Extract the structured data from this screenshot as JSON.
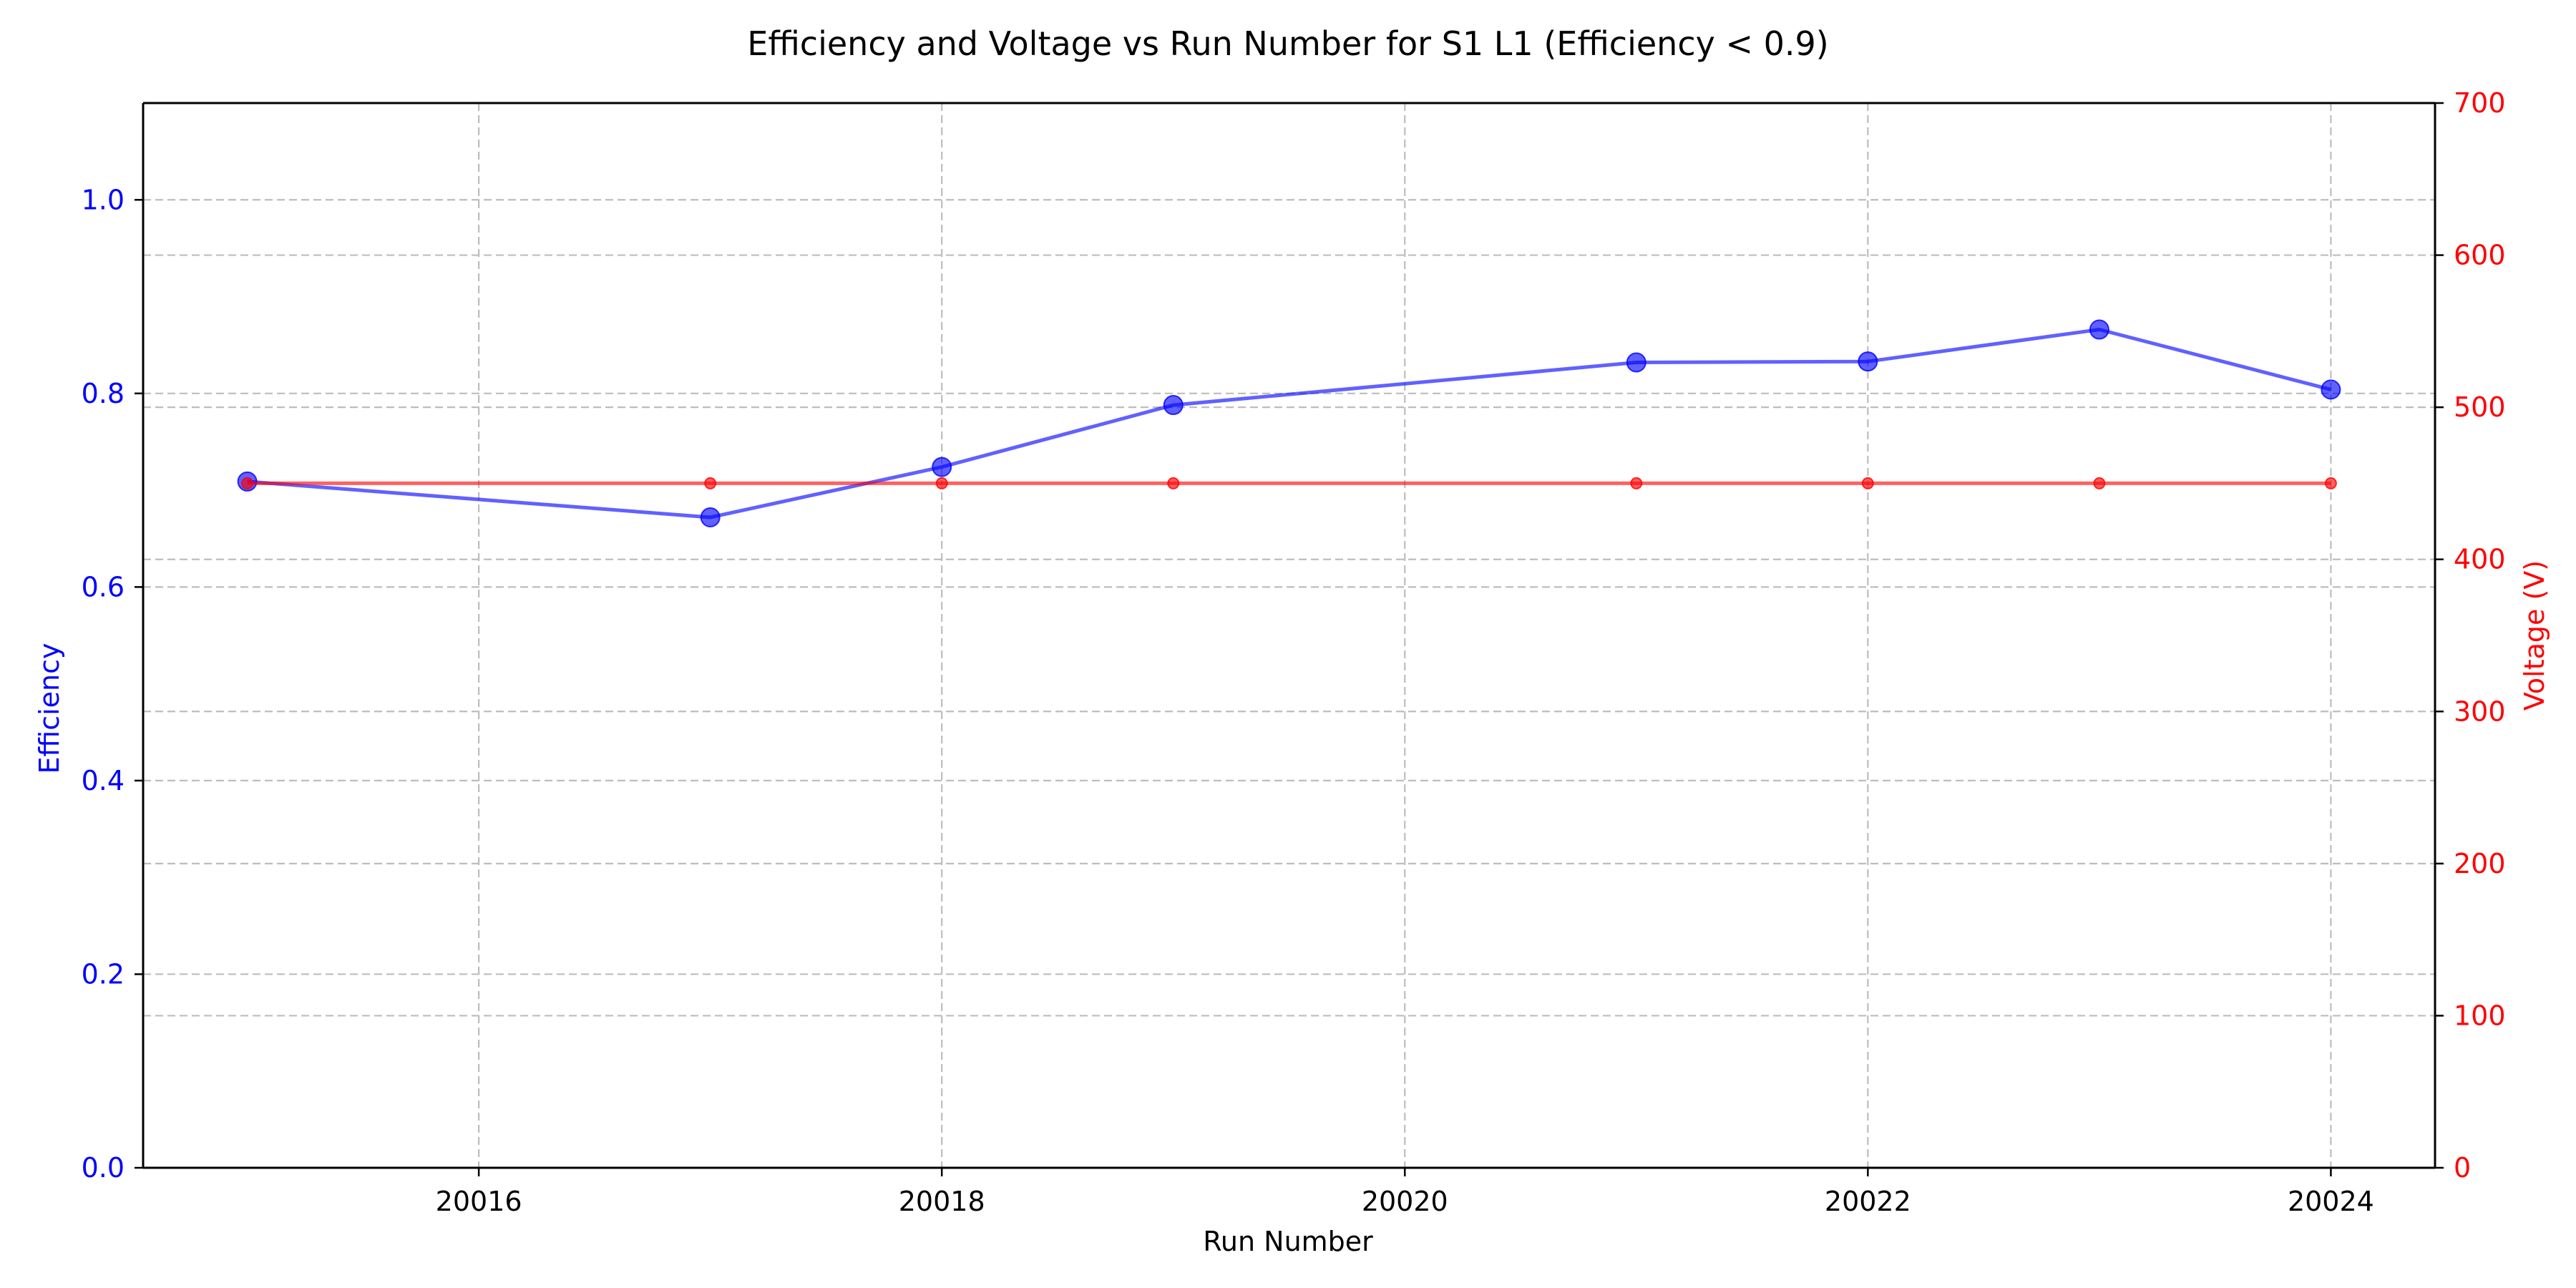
{
  "chart_data": {
    "type": "line",
    "title": "Efficiency and Voltage vs Run Number for S1 L1 (Efficiency < 0.9)",
    "xlabel": "Run Number",
    "xlim": [
      20014.55,
      20024.45
    ],
    "x_ticks": [
      20016,
      20018,
      20020,
      20022,
      20024
    ],
    "grid": true,
    "y_left": {
      "label": "Efficiency",
      "color": "#0000ff",
      "lim": [
        0.0,
        1.1
      ],
      "ticks": [
        0.0,
        0.2,
        0.4,
        0.6,
        0.8,
        1.0
      ],
      "tick_labels": [
        "0.0",
        "0.2",
        "0.4",
        "0.6",
        "0.8",
        "1.0"
      ]
    },
    "y_right": {
      "label": "Voltage (V)",
      "color": "#ff0000",
      "lim": [
        0,
        700
      ],
      "ticks": [
        0,
        100,
        200,
        300,
        400,
        500,
        600,
        700
      ],
      "tick_labels": [
        "0",
        "100",
        "200",
        "300",
        "400",
        "500",
        "600",
        "700"
      ]
    },
    "series": [
      {
        "axis": "left",
        "color": "#0000ff",
        "marker": "circle-large",
        "x": [
          20015,
          20017,
          20018,
          20019,
          20021,
          20022,
          20023,
          20024
        ],
        "y": [
          0.709,
          0.672,
          0.724,
          0.788,
          0.832,
          0.833,
          0.866,
          0.804
        ]
      },
      {
        "axis": "right",
        "color": "#ff0000",
        "marker": "circle-small",
        "x": [
          20015,
          20017,
          20018,
          20019,
          20021,
          20022,
          20023,
          20024
        ],
        "y": [
          450,
          450,
          450,
          450,
          450,
          450,
          450,
          450
        ]
      }
    ]
  }
}
